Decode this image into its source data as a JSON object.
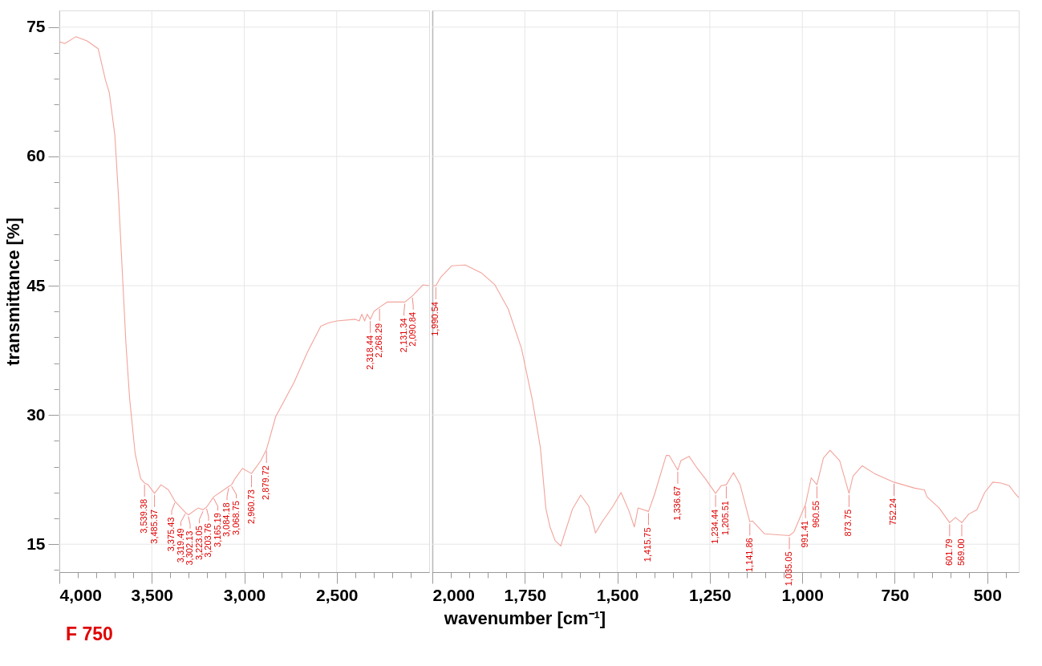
{
  "chart_data": [
    {
      "type": "line",
      "ylabel": "transmittance [%]",
      "xlim": [
        4000,
        2000
      ],
      "ylim": [
        11.76,
        76.94
      ],
      "xticks": [
        {
          "value": 4000,
          "label": "4,000"
        },
        {
          "value": 3900,
          "label": null
        },
        {
          "value": 3800,
          "label": null
        },
        {
          "value": 3700,
          "label": null
        },
        {
          "value": 3600,
          "label": null
        },
        {
          "value": 3500,
          "label": "3,500"
        },
        {
          "value": 3400,
          "label": null
        },
        {
          "value": 3300,
          "label": null
        },
        {
          "value": 3200,
          "label": null
        },
        {
          "value": 3100,
          "label": null
        },
        {
          "value": 3000,
          "label": "3,000"
        },
        {
          "value": 2900,
          "label": null
        },
        {
          "value": 2800,
          "label": null
        },
        {
          "value": 2700,
          "label": null
        },
        {
          "value": 2600,
          "label": null
        },
        {
          "value": 2500,
          "label": "2,500"
        },
        {
          "value": 2400,
          "label": null
        },
        {
          "value": 2300,
          "label": null
        },
        {
          "value": 2200,
          "label": null
        },
        {
          "value": 2100,
          "label": null
        }
      ],
      "yticks": [
        {
          "value": 12,
          "label": null
        },
        15,
        {
          "value": 18,
          "label": null
        },
        {
          "value": 21,
          "label": null
        },
        {
          "value": 24,
          "label": null
        },
        {
          "value": 27,
          "label": null
        },
        30,
        {
          "value": 33,
          "label": null
        },
        {
          "value": 36,
          "label": null
        },
        {
          "value": 39,
          "label": null
        },
        {
          "value": 42,
          "label": null
        },
        45,
        {
          "value": 48,
          "label": null
        },
        {
          "value": 51,
          "label": null
        },
        {
          "value": 54,
          "label": null
        },
        {
          "value": 57,
          "label": null
        },
        60,
        {
          "value": 63,
          "label": null
        },
        {
          "value": 66,
          "label": null
        },
        {
          "value": 69,
          "label": null
        },
        {
          "value": 72,
          "label": null
        },
        75
      ],
      "grid": true,
      "line_style": "solid",
      "x": [
        4000,
        3970,
        3910,
        3850,
        3790,
        3750,
        3730,
        3700,
        3680,
        3660,
        3640,
        3620,
        3590,
        3560,
        3539.38,
        3520,
        3485.37,
        3450,
        3410,
        3375.43,
        3319.49,
        3302.13,
        3250,
        3223.05,
        3203.76,
        3165.19,
        3084.18,
        3068.75,
        3050,
        3010,
        2960.73,
        2910,
        2879.72,
        2830,
        2730,
        2658,
        2586,
        2543,
        2500,
        2399,
        2378,
        2364,
        2349,
        2335,
        2318.44,
        2299,
        2268.29,
        2227,
        2141,
        2131.34,
        2090.84,
        2033,
        2000
      ],
      "series": [
        {
          "color": "#f2a49c",
          "values": [
            73.3,
            73.1,
            73.9,
            73.4,
            72.5,
            68.8,
            67.4,
            62.5,
            55.3,
            46.8,
            38.3,
            31.9,
            25.5,
            22.6,
            22.1,
            21.9,
            20.9,
            21.9,
            21.3,
            20.0,
            18.7,
            18.4,
            19.2,
            19.0,
            19.3,
            20.5,
            21.7,
            21.9,
            22.6,
            23.8,
            23.2,
            24.7,
            26.0,
            29.8,
            33.8,
            37.3,
            40.3,
            40.7,
            40.9,
            41.1,
            40.9,
            41.7,
            40.9,
            41.7,
            41.1,
            42.0,
            42.5,
            43.1,
            43.1,
            43.1,
            43.8,
            45.1,
            45.0
          ]
        }
      ],
      "annotations": [
        {
          "text": "3,539.38",
          "x": 3539.38,
          "y": 22.1
        },
        {
          "text": "3,485.37",
          "x": 3485.37,
          "y": 20.9
        },
        {
          "text": "3,375.43",
          "x": 3375.43,
          "y": 20.0
        },
        {
          "text": "3,319.49",
          "x": 3319.49,
          "y": 18.7
        },
        {
          "text": "3,302.13",
          "x": 3302.13,
          "y": 18.4
        },
        {
          "text": "3,223.05",
          "x": 3223.05,
          "y": 19.0
        },
        {
          "text": "3,203.76",
          "x": 3203.76,
          "y": 19.3
        },
        {
          "text": "3,165.19",
          "x": 3165.19,
          "y": 20.5
        },
        {
          "text": "3,084.18",
          "x": 3084.18,
          "y": 21.7
        },
        {
          "text": "3,068.75",
          "x": 3068.75,
          "y": 21.9
        },
        {
          "text": "2,960.73",
          "x": 2960.73,
          "y": 23.2
        },
        {
          "text": "2,879.72",
          "x": 2879.72,
          "y": 26.0
        },
        {
          "text": "2,318.44",
          "x": 2318.44,
          "y": 41.1
        },
        {
          "text": "2,268.29",
          "x": 2268.29,
          "y": 42.5
        },
        {
          "text": "2,131.34",
          "x": 2131.34,
          "y": 43.1
        },
        {
          "text": "2,090.84",
          "x": 2090.84,
          "y": 43.8
        },
        "F 750"
      ]
    },
    {
      "type": "line",
      "xlabel": "wavenumber [cm⁻¹]",
      "xlim": [
        2000,
        415
      ],
      "ylim": [
        11.76,
        76.94
      ],
      "tick_labels": "x",
      "xticks": [
        {
          "value": 2000,
          "label": "2,000"
        },
        {
          "value": 1950,
          "label": null
        },
        {
          "value": 1900,
          "label": null
        },
        {
          "value": 1850,
          "label": null
        },
        {
          "value": 1800,
          "label": null
        },
        {
          "value": 1750,
          "label": "1,750"
        },
        {
          "value": 1700,
          "label": null
        },
        {
          "value": 1650,
          "label": null
        },
        {
          "value": 1600,
          "label": null
        },
        {
          "value": 1550,
          "label": null
        },
        {
          "value": 1500,
          "label": "1,500"
        },
        {
          "value": 1450,
          "label": null
        },
        {
          "value": 1400,
          "label": null
        },
        {
          "value": 1350,
          "label": null
        },
        {
          "value": 1300,
          "label": null
        },
        {
          "value": 1250,
          "label": "1,250"
        },
        {
          "value": 1200,
          "label": null
        },
        {
          "value": 1150,
          "label": null
        },
        {
          "value": 1100,
          "label": null
        },
        {
          "value": 1050,
          "label": null
        },
        {
          "value": 1000,
          "label": "1,000"
        },
        {
          "value": 950,
          "label": null
        },
        {
          "value": 900,
          "label": null
        },
        {
          "value": 850,
          "label": null
        },
        {
          "value": 800,
          "label": null
        },
        750,
        {
          "value": 700,
          "label": null
        },
        {
          "value": 650,
          "label": null
        },
        {
          "value": 600,
          "label": null
        },
        {
          "value": 550,
          "label": null
        },
        500,
        {
          "value": 450,
          "label": null
        }
      ],
      "yticks": [
        15,
        30,
        45,
        60,
        75
      ],
      "grid": true,
      "line_style": "solid",
      "x": [
        2000,
        1990.54,
        1977,
        1948,
        1911,
        1868,
        1831,
        1795,
        1759,
        1730,
        1708,
        1693,
        1682,
        1668,
        1653,
        1642,
        1621,
        1599,
        1577,
        1559,
        1541,
        1512,
        1490,
        1468,
        1454,
        1444,
        1415.75,
        1400,
        1368,
        1360,
        1336.67,
        1328,
        1306,
        1284,
        1262,
        1234.44,
        1219,
        1205.51,
        1186,
        1168,
        1141.86,
        1135,
        1102,
        1035.05,
        1023,
        991.41,
        976,
        960.55,
        943,
        925,
        899,
        873.75,
        863,
        838,
        805,
        752.24,
        696,
        670,
        663,
        630,
        601.79,
        586,
        569.0,
        550,
        528,
        507,
        485,
        463,
        441,
        427,
        415
      ],
      "series": [
        {
          "color": "#f2a49c",
          "values": [
            45.0,
            45.0,
            46.0,
            47.3,
            47.4,
            46.5,
            45.1,
            42.3,
            37.7,
            31.8,
            26.2,
            19.1,
            17.0,
            15.4,
            14.8,
            16.3,
            19.1,
            20.7,
            19.4,
            16.3,
            17.6,
            19.4,
            21.0,
            18.8,
            17.0,
            19.2,
            18.8,
            20.7,
            25.3,
            25.3,
            23.6,
            24.7,
            25.2,
            23.8,
            22.6,
            20.9,
            21.8,
            21.9,
            23.3,
            21.9,
            17.6,
            17.7,
            16.2,
            16.0,
            16.4,
            19.6,
            22.7,
            21.9,
            25.0,
            25.9,
            24.7,
            20.9,
            22.9,
            24.1,
            23.2,
            22.2,
            21.5,
            21.3,
            20.5,
            19.2,
            17.5,
            18.1,
            17.5,
            18.5,
            19.0,
            21.0,
            22.2,
            22.1,
            21.8,
            21.0,
            20.4
          ]
        }
      ],
      "annotations": [
        {
          "text": "1,990.54",
          "x": 1990.54,
          "y": 45.0
        },
        {
          "text": "1,415.75",
          "x": 1415.75,
          "y": 18.8
        },
        {
          "text": "1,336.67",
          "x": 1336.67,
          "y": 23.6
        },
        {
          "text": "1,234.44",
          "x": 1234.44,
          "y": 20.9
        },
        {
          "text": "1,205.51",
          "x": 1205.51,
          "y": 21.9
        },
        {
          "text": "1,141.86",
          "x": 1141.86,
          "y": 17.6
        },
        {
          "text": "1,035.05",
          "x": 1035.05,
          "y": 16.0
        },
        {
          "text": "991.41",
          "x": 991.41,
          "y": 19.6
        },
        {
          "text": "960.55",
          "x": 960.55,
          "y": 21.9
        },
        {
          "text": "873.75",
          "x": 873.75,
          "y": 20.9
        },
        {
          "text": "752.24",
          "x": 752.24,
          "y": 22.2
        },
        {
          "text": "601.79",
          "x": 601.79,
          "y": 17.5
        },
        {
          "text": "569.00",
          "x": 569.0,
          "y": 17.5
        }
      ]
    }
  ]
}
